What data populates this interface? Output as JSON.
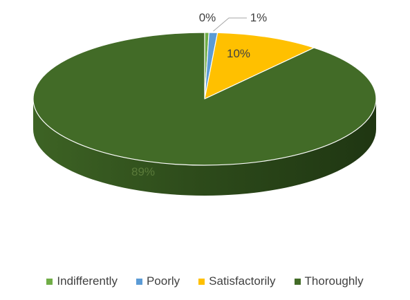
{
  "chart_data": {
    "type": "pie",
    "style": "3d",
    "legend_position": "bottom",
    "slices": [
      {
        "name": "Indifferently",
        "value": 0.4,
        "label": "0%",
        "color": "#70ad47"
      },
      {
        "name": "Poorly",
        "value": 0.8,
        "label": "1%",
        "color": "#5b9bd5"
      },
      {
        "name": "Satisfactorily",
        "value": 9.8,
        "label": "10%",
        "color": "#ffc000"
      },
      {
        "name": "Thoroughly",
        "value": 89.0,
        "label": "89%",
        "color": "#426b27"
      }
    ]
  }
}
